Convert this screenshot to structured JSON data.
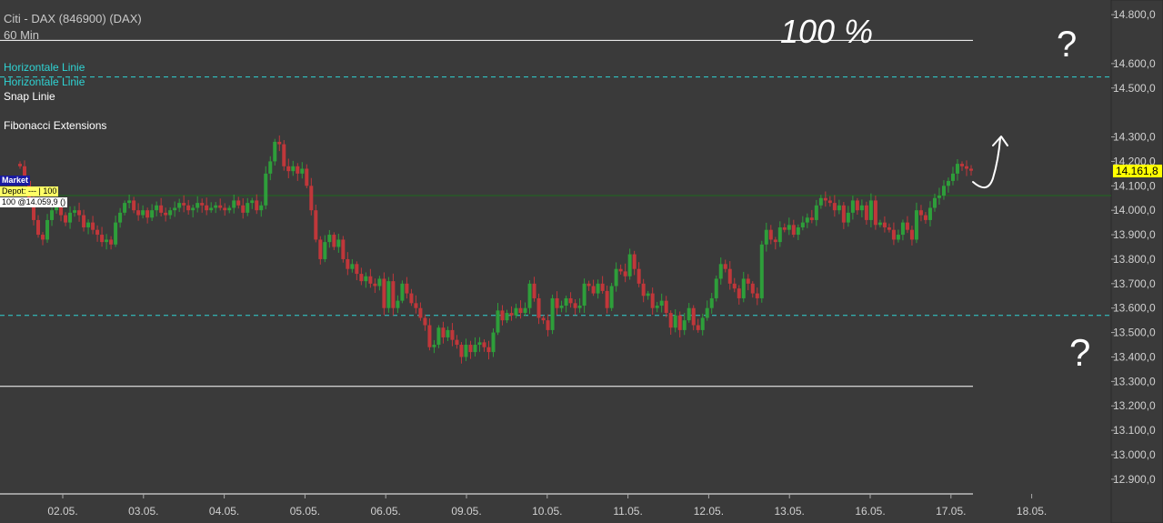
{
  "header": {
    "title": "Citi - DAX (846900) (DAX)",
    "interval": "60 Min"
  },
  "legend": [
    {
      "label": "Horizontale Linie",
      "color": "#2fd3d3"
    },
    {
      "label": "Horizontale Linie",
      "color": "#2fd3d3"
    },
    {
      "label": "Snap Linie",
      "color": "#ffffff"
    },
    {
      "label": "",
      "color": "#1f8a1f"
    },
    {
      "label": "Fibonacci Extensions",
      "color": "#ffffff"
    }
  ],
  "tags": {
    "market": "Market",
    "depot": "Depot: --- | 100",
    "position": "100 @14.059,9 ()"
  },
  "last_price": "14.161,8",
  "annotations": {
    "top_note": "100 %",
    "question_top": "?",
    "question_bottom": "?"
  },
  "colors": {
    "background": "#3a3a3a",
    "up": "#2e9e3a",
    "down": "#c0373a",
    "cyan_line": "#2fd3d3",
    "white_line": "#ffffff",
    "position_line": "#1f6b1f",
    "price_tag": "#ffff00"
  },
  "chart_data": {
    "type": "candlestick",
    "title": "Citi - DAX (846900) (DAX)",
    "interval": "60 Min",
    "x_labels": [
      "02.05.",
      "03.05.",
      "04.05.",
      "05.05.",
      "06.05.",
      "09.05.",
      "10.05.",
      "11.05.",
      "12.05.",
      "13.05.",
      "16.05.",
      "17.05.",
      "18.05."
    ],
    "y_ticks": [
      {
        "value": 14800,
        "label": "14.800,0"
      },
      {
        "value": 14600,
        "label": "14.600,0"
      },
      {
        "value": 14500,
        "label": "14.500,0"
      },
      {
        "value": 14300,
        "label": "14.300,0"
      },
      {
        "value": 14200,
        "label": "14.200,0"
      },
      {
        "value": 14100,
        "label": "14.100,0"
      },
      {
        "value": 14000,
        "label": "14.000,0"
      },
      {
        "value": 13900,
        "label": "13.900,0"
      },
      {
        "value": 13800,
        "label": "13.800,0"
      },
      {
        "value": 13700,
        "label": "13.700,0"
      },
      {
        "value": 13600,
        "label": "13.600,0"
      },
      {
        "value": 13500,
        "label": "13.500,0"
      },
      {
        "value": 13400,
        "label": "13.400,0"
      },
      {
        "value": 13300,
        "label": "13.300,0"
      },
      {
        "value": 13200,
        "label": "13.200,0"
      },
      {
        "value": 13100,
        "label": "13.100,0"
      },
      {
        "value": 13000,
        "label": "13.000,0"
      },
      {
        "value": 12900,
        "label": "12.900,0"
      }
    ],
    "ylim": [
      12840,
      14860
    ],
    "last_price": 14161.8,
    "position_price": 14059.9,
    "horizontal_lines": [
      {
        "value": 14695,
        "style": "white-solid"
      },
      {
        "value": 14545,
        "style": "cyan-dashed"
      },
      {
        "value": 13570,
        "style": "cyan-dashed"
      },
      {
        "value": 13280,
        "style": "white-solid"
      },
      {
        "value": 12840,
        "style": "white-solid"
      },
      {
        "value": 14060,
        "style": "green-position"
      }
    ],
    "closes": [
      14180,
      14120,
      14030,
      13960,
      13900,
      13880,
      13960,
      14000,
      14020,
      13980,
      13950,
      13990,
      14000,
      13980,
      13930,
      13950,
      13920,
      13900,
      13870,
      13880,
      13860,
      13950,
      13990,
      14030,
      14040,
      14000,
      13980,
      14000,
      13970,
      14000,
      14020,
      13990,
      13980,
      14000,
      14010,
      14030,
      14020,
      14000,
      14010,
      14030,
      14020,
      14000,
      14010,
      14020,
      14010,
      14000,
      14010,
      14040,
      14020,
      13990,
      14030,
      14040,
      14000,
      14020,
      14150,
      14200,
      14280,
      14270,
      14180,
      14160,
      14180,
      14150,
      14170,
      14100,
      14000,
      13880,
      13800,
      13870,
      13900,
      13850,
      13880,
      13800,
      13760,
      13780,
      13740,
      13710,
      13730,
      13700,
      13690,
      13720,
      13600,
      13710,
      13600,
      13630,
      13700,
      13660,
      13620,
      13600,
      13560,
      13530,
      13440,
      13450,
      13520,
      13480,
      13510,
      13470,
      13450,
      13400,
      13450,
      13420,
      13450,
      13460,
      13440,
      13420,
      13500,
      13590,
      13550,
      13580,
      13570,
      13600,
      13580,
      13600,
      13700,
      13640,
      13560,
      13550,
      13510,
      13640,
      13600,
      13610,
      13640,
      13620,
      13600,
      13610,
      13700,
      13690,
      13660,
      13700,
      13670,
      13600,
      13690,
      13760,
      13750,
      13730,
      13820,
      13760,
      13700,
      13650,
      13660,
      13600,
      13610,
      13630,
      13580,
      13520,
      13570,
      13510,
      13550,
      13600,
      13530,
      13510,
      13560,
      13600,
      13640,
      13720,
      13780,
      13760,
      13700,
      13680,
      13640,
      13720,
      13700,
      13660,
      13640,
      13860,
      13920,
      13880,
      13870,
      13930,
      13920,
      13940,
      13900,
      13930,
      13950,
      13970,
      13960,
      14020,
      14050,
      14040,
      14030,
      14000,
      14020,
      13950,
      13990,
      14040,
      14000,
      14020,
      13960,
      14040,
      13940,
      13950,
      13930,
      13920,
      13880,
      13900,
      13950,
      13920,
      13880,
      14000,
      13980,
      13960,
      14010,
      14050,
      14060,
      14100,
      14120,
      14150,
      14190,
      14180,
      14170,
      14161.8
    ]
  }
}
